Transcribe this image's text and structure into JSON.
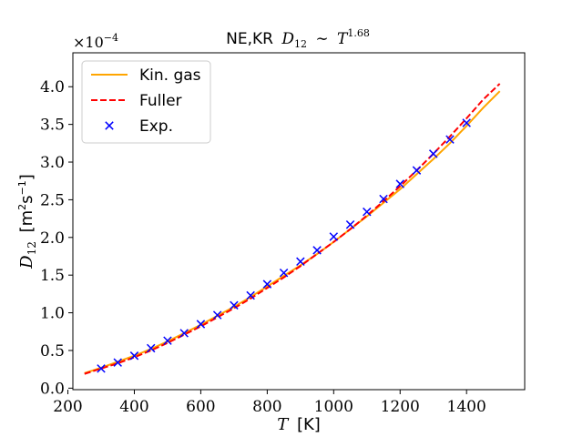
{
  "chart_data": {
    "type": "line",
    "title": "NE,KR D12 ~ T^1.68",
    "title_parts": {
      "prefix": "NE,KR",
      "var": "D",
      "var_sub": "12",
      "sim": "∼",
      "base": "T",
      "exp": "1.68"
    },
    "xlabel": {
      "var": "T",
      "unit": "[K]"
    },
    "ylabel": {
      "var": "D",
      "sub": "12",
      "unit_open": "[m",
      "sup": "2",
      "unit_mid": "s",
      "sup2": "−1",
      "unit_close": "]"
    },
    "y_multiplier": {
      "text": "×10",
      "exp": "−4"
    },
    "xlim": [
      215,
      1575
    ],
    "ylim": [
      -0.02,
      4.45
    ],
    "x_ticks": [
      200,
      400,
      600,
      800,
      1000,
      1200,
      1400
    ],
    "x_tick_labels": [
      "200",
      "400",
      "600",
      "800",
      "1000",
      "1200",
      "1400"
    ],
    "y_ticks": [
      0.0,
      0.5,
      1.0,
      1.5,
      2.0,
      2.5,
      3.0,
      3.5,
      4.0
    ],
    "y_tick_labels": [
      "0.0",
      "0.5",
      "1.0",
      "1.5",
      "2.0",
      "2.5",
      "3.0",
      "3.5",
      "4.0"
    ],
    "grid": false,
    "legend_position": "top-left",
    "series": [
      {
        "name": "Kin. gas",
        "style": "solid",
        "color": "#ffa500",
        "x": [
          250,
          300,
          350,
          400,
          450,
          500,
          550,
          600,
          650,
          700,
          750,
          800,
          850,
          900,
          950,
          1000,
          1050,
          1100,
          1150,
          1200,
          1250,
          1300,
          1350,
          1400,
          1450,
          1500
        ],
        "y": [
          0.2,
          0.27,
          0.35,
          0.43,
          0.52,
          0.62,
          0.73,
          0.84,
          0.96,
          1.08,
          1.21,
          1.35,
          1.49,
          1.63,
          1.78,
          1.94,
          2.11,
          2.28,
          2.46,
          2.64,
          2.84,
          3.04,
          3.25,
          3.48,
          3.72,
          3.94
        ]
      },
      {
        "name": "Fuller",
        "style": "dashed",
        "color": "#ff0000",
        "x": [
          250,
          300,
          350,
          400,
          450,
          500,
          550,
          600,
          650,
          700,
          750,
          800,
          850,
          900,
          950,
          1000,
          1050,
          1100,
          1150,
          1200,
          1250,
          1300,
          1350,
          1400,
          1450,
          1500
        ],
        "y": [
          0.19,
          0.26,
          0.33,
          0.41,
          0.5,
          0.6,
          0.71,
          0.82,
          0.94,
          1.06,
          1.19,
          1.33,
          1.47,
          1.62,
          1.78,
          1.94,
          2.11,
          2.29,
          2.48,
          2.68,
          2.89,
          3.11,
          3.34,
          3.58,
          3.83,
          4.04
        ]
      },
      {
        "name": "Exp.",
        "style": "marker-x",
        "color": "#0000ff",
        "x": [
          300,
          350,
          400,
          450,
          500,
          550,
          600,
          650,
          700,
          750,
          800,
          850,
          900,
          950,
          1000,
          1050,
          1100,
          1150,
          1200,
          1250,
          1300,
          1350,
          1400
        ],
        "y": [
          0.26,
          0.34,
          0.43,
          0.53,
          0.63,
          0.73,
          0.85,
          0.97,
          1.1,
          1.23,
          1.38,
          1.53,
          1.68,
          1.83,
          2.01,
          2.17,
          2.34,
          2.51,
          2.71,
          2.89,
          3.11,
          3.3,
          3.52
        ]
      }
    ]
  }
}
